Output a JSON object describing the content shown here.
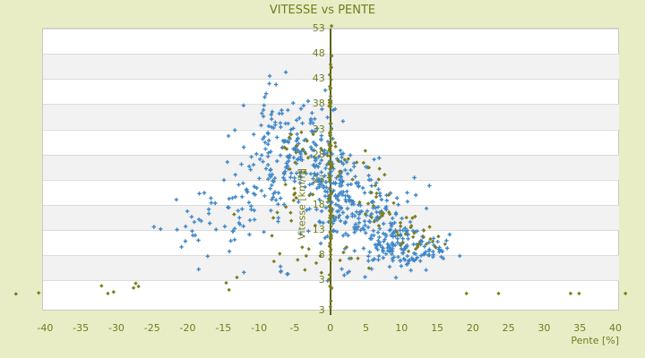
{
  "title": "VITESSE vs PENTE",
  "style": {
    "background": "#E9EDC6",
    "plot_background": "#FFFFFF",
    "plot_border": "#C9C9C9",
    "band_alt": "#F2F2F2",
    "grid_line": "#DCDCDC",
    "axis_line": "#5B621B",
    "text_color": "#6F7D1E"
  },
  "chart_data": {
    "type": "scatter",
    "title": "VITESSE vs PENTE",
    "xlabel": "Pente [%]",
    "ylabel": "Vitesse [km/h]",
    "xlim": [
      -40.3,
      40.5
    ],
    "ylim": [
      -3,
      53
    ],
    "xticks": [
      -40,
      -35,
      -30,
      -25,
      -20,
      -15,
      -10,
      -5,
      0,
      5,
      10,
      15,
      20,
      25,
      30,
      35,
      40
    ],
    "yticks": [
      53,
      48,
      43,
      38,
      33,
      28,
      23,
      18,
      13,
      8,
      3
    ],
    "y_axis_bottom_label": "3",
    "grid": "horizontal-bands-alternating",
    "legend": "none",
    "y_axis_position_x_value": 0,
    "seed": 7,
    "cluster_format": [
      "x_mean",
      "x_sd",
      "y_mean",
      "y_sd",
      "n_points"
    ],
    "series": [
      {
        "name": "blue-cross-series",
        "marker": "cross",
        "color": "#3E86C7",
        "clusters": [
          [
            -1.2,
            1.0,
            25,
            6.5,
            85
          ],
          [
            -4.5,
            2.0,
            28,
            5,
            65
          ],
          [
            -8,
            2.5,
            26,
            5,
            55
          ],
          [
            -6.5,
            2.0,
            35,
            2.8,
            28
          ],
          [
            -11,
            3,
            20.5,
            4.5,
            42
          ],
          [
            -15,
            3,
            16,
            3.5,
            26
          ],
          [
            -19.5,
            2.5,
            12,
            3,
            13
          ],
          [
            1.0,
            0.7,
            22,
            5.5,
            60
          ],
          [
            3.2,
            1.5,
            17,
            4.5,
            55
          ],
          [
            6,
            2,
            13,
            3.5,
            60
          ],
          [
            9,
            2.2,
            10.5,
            2.2,
            70
          ],
          [
            12,
            2,
            9.5,
            1.8,
            42
          ],
          [
            15,
            1.5,
            9.3,
            1.2,
            13
          ],
          [
            4.5,
            2,
            24,
            3.5,
            22
          ],
          [
            7.5,
            3.5,
            19,
            3,
            18
          ],
          [
            -6,
            4.5,
            4.3,
            0.9,
            8
          ],
          [
            2.5,
            2.5,
            4.6,
            0.9,
            5
          ]
        ],
        "points": [
          [
            -8.5,
            43.6
          ],
          [
            -7.6,
            41.9
          ],
          [
            -9.2,
            39.4
          ],
          [
            16.4,
            9.4
          ],
          [
            13.9,
            21.8
          ],
          [
            -3.1,
            38.6
          ],
          [
            0.4,
            36.8
          ],
          [
            -23.8,
            13.2
          ],
          [
            -17.2,
            7.8
          ],
          [
            11.8,
            23.4
          ]
        ]
      },
      {
        "name": "olive-diamond-series",
        "marker": "diamond",
        "color": "#7C7E20",
        "clusters": [
          [
            0,
            0.12,
            24,
            9,
            60
          ],
          [
            0,
            0.1,
            40,
            4,
            14
          ],
          [
            0,
            0.1,
            11,
            3,
            12
          ],
          [
            0,
            0.1,
            1.3,
            0.8,
            5
          ],
          [
            2.5,
            1.2,
            26,
            2.5,
            13
          ],
          [
            5.5,
            1.5,
            20,
            2.5,
            15
          ],
          [
            8.5,
            1.8,
            16,
            2,
            15
          ],
          [
            11.5,
            1.8,
            13,
            1.5,
            13
          ],
          [
            14,
            1.5,
            10.5,
            1.2,
            9
          ],
          [
            -3.5,
            2,
            22,
            5,
            16
          ],
          [
            -7,
            2.5,
            15,
            4,
            11
          ],
          [
            -5,
            2,
            30,
            3,
            7
          ],
          [
            -2,
            1.5,
            7,
            2,
            8
          ],
          [
            3,
            2,
            7.5,
            2,
            7
          ]
        ],
        "points": [
          [
            -44.1,
            0.3
          ],
          [
            -40.9,
            0.5
          ],
          [
            -32.1,
            1.9
          ],
          [
            -31.2,
            0.4
          ],
          [
            -30.4,
            0.7
          ],
          [
            -27.3,
            2.4
          ],
          [
            -26.9,
            1.8
          ],
          [
            -27.6,
            1.5
          ],
          [
            -14.6,
            2.5
          ],
          [
            -14.2,
            1.1
          ],
          [
            -13.1,
            3.6
          ],
          [
            19.1,
            0.4
          ],
          [
            23.6,
            0.4
          ],
          [
            33.7,
            0.4
          ],
          [
            34.9,
            0.4
          ],
          [
            41.4,
            0.4
          ],
          [
            0.2,
            47.6
          ],
          [
            0.1,
            45.2
          ],
          [
            16.1,
            10.2
          ]
        ]
      }
    ]
  }
}
